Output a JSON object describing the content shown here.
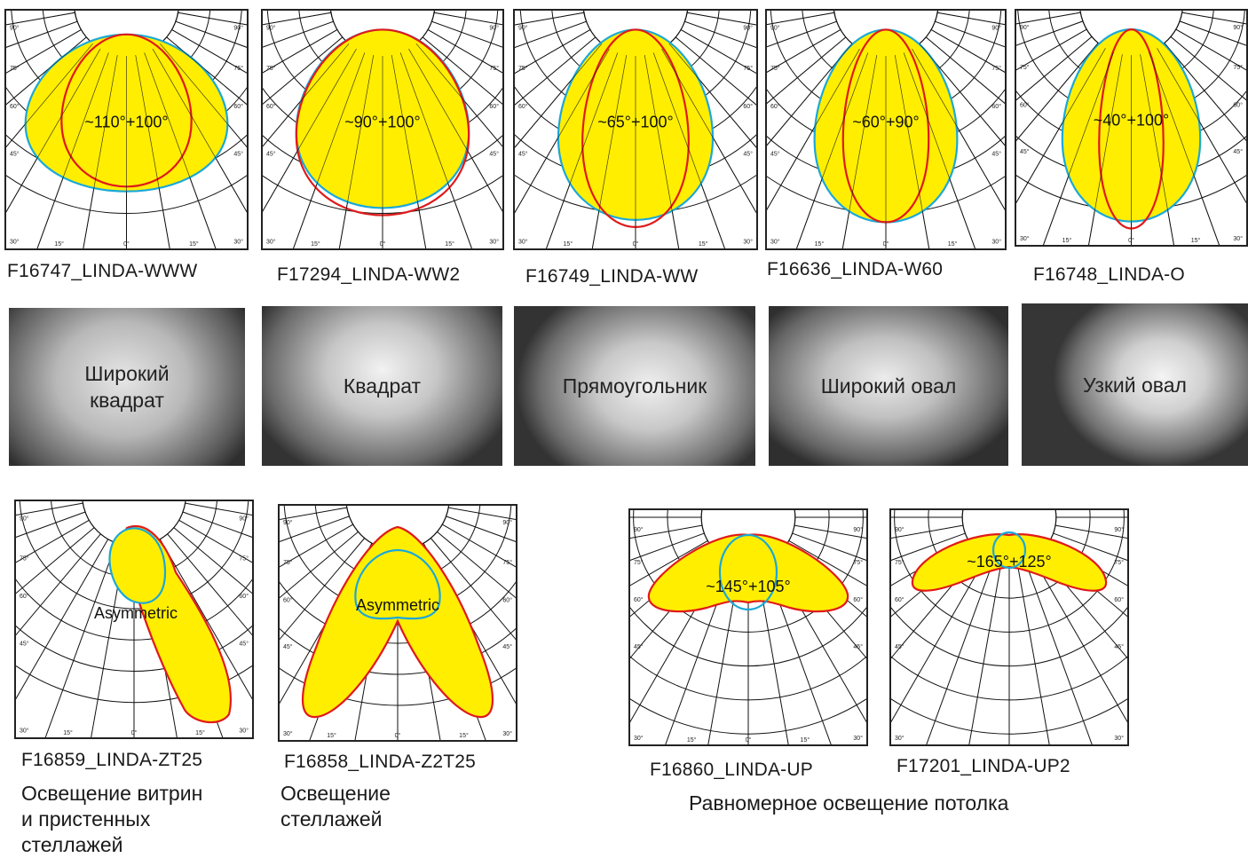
{
  "diagrams": [
    {
      "code": "F16747_LINDA-WWW",
      "label": "~110°+100°",
      "sx": 1.35,
      "sy": 0.95
    },
    {
      "code": "F17294_LINDA-WW2",
      "label": "~90°+100°",
      "sx": 1.1,
      "sy": 1.05
    },
    {
      "code": "F16749_LINDA-WW",
      "label": "~65°+100°",
      "sx": 0.8,
      "sy": 1.05
    },
    {
      "code": "F16636_LINDA-W60",
      "label": "~60°+90°",
      "sx": 0.78,
      "sy": 1.0
    },
    {
      "code": "F16748_LINDA-O",
      "label": "~40°+100°",
      "sx": 0.6,
      "sy": 1.05
    },
    {
      "code": "F16859_LINDA-ZT25",
      "label": "Asymmetric"
    },
    {
      "code": "F16858_LINDA-Z2T25",
      "label": "Asymmetric"
    },
    {
      "code": "F16860_LINDA-UP",
      "label": "~145°+105°"
    },
    {
      "code": "F17201_LINDA-UP2",
      "label": "~165°+125°"
    }
  ],
  "angle_ticks": [
    "90°",
    "75°",
    "60°",
    "45°",
    "30°",
    "15°",
    "0°"
  ],
  "beam_shapes": [
    {
      "label": "Широкий\nквадрат"
    },
    {
      "label": "Квадрат"
    },
    {
      "label": "Прямоугольник"
    },
    {
      "label": "Широкий овал"
    },
    {
      "label": "Узкий овал"
    }
  ],
  "descriptions": {
    "showcase": "Освещение витрин\nи пристенных\nстеллажей",
    "shelves": "Освещение\nстеллажей",
    "ceiling": "Равномерное освещение потолка"
  },
  "colors": {
    "fill": "#ffee00",
    "curve_a": "#e01a1a",
    "curve_b": "#1aa8d8",
    "grid": "#111111"
  }
}
